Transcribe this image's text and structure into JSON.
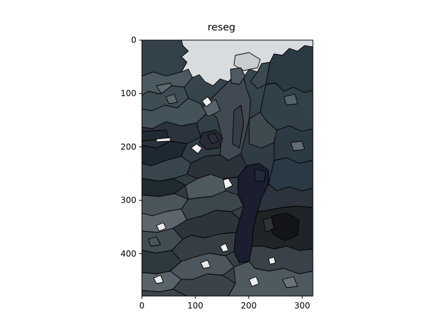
{
  "figure": {
    "title": "reseg",
    "image_size": {
      "width": 320,
      "height": 480
    },
    "x_ticks": [
      "0",
      "100",
      "200",
      "300"
    ],
    "y_ticks": [
      "0",
      "100",
      "200",
      "300",
      "400"
    ],
    "palette": {
      "sky": "#d9dcdf",
      "dark_slate": "#2e3d45",
      "mid_slate": "#4a5960",
      "navy": "#1b1f33",
      "charcoal": "#2a2d33",
      "light_gray": "#8d969c",
      "white": "#f2f2f2",
      "boundary": "#000000"
    }
  }
}
